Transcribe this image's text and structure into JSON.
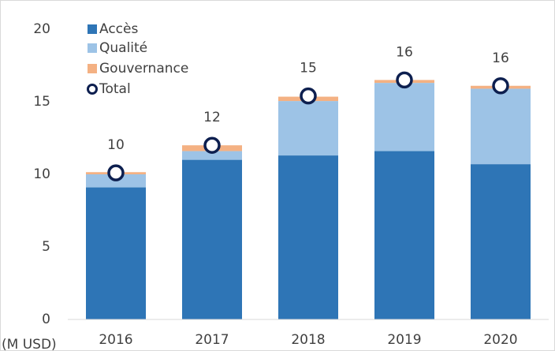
{
  "chart_data": {
    "type": "stacked_bar",
    "categories": [
      "2016",
      "2017",
      "2018",
      "2019",
      "2020"
    ],
    "series": [
      {
        "name": "Accès",
        "color": "#2e75b6",
        "values": [
          9.1,
          11.0,
          11.3,
          11.6,
          10.7
        ]
      },
      {
        "name": "Qualité",
        "color": "#9dc3e6",
        "values": [
          0.9,
          0.6,
          3.75,
          4.7,
          5.2
        ]
      },
      {
        "name": "Gouvernance",
        "color": "#f4b183",
        "values": [
          0.15,
          0.4,
          0.3,
          0.2,
          0.2
        ]
      }
    ],
    "total": {
      "name": "Total",
      "color": "#0d1f4f",
      "values": [
        10.1,
        12.0,
        15.4,
        16.5,
        16.1
      ],
      "value_labels": [
        "10",
        "12",
        "15",
        "16",
        "16"
      ]
    },
    "x_label": "(M USD)",
    "ylim": [
      0,
      20
    ],
    "yticks": [
      0,
      5,
      10,
      15,
      20
    ],
    "grid": false,
    "legend": "top-left"
  }
}
